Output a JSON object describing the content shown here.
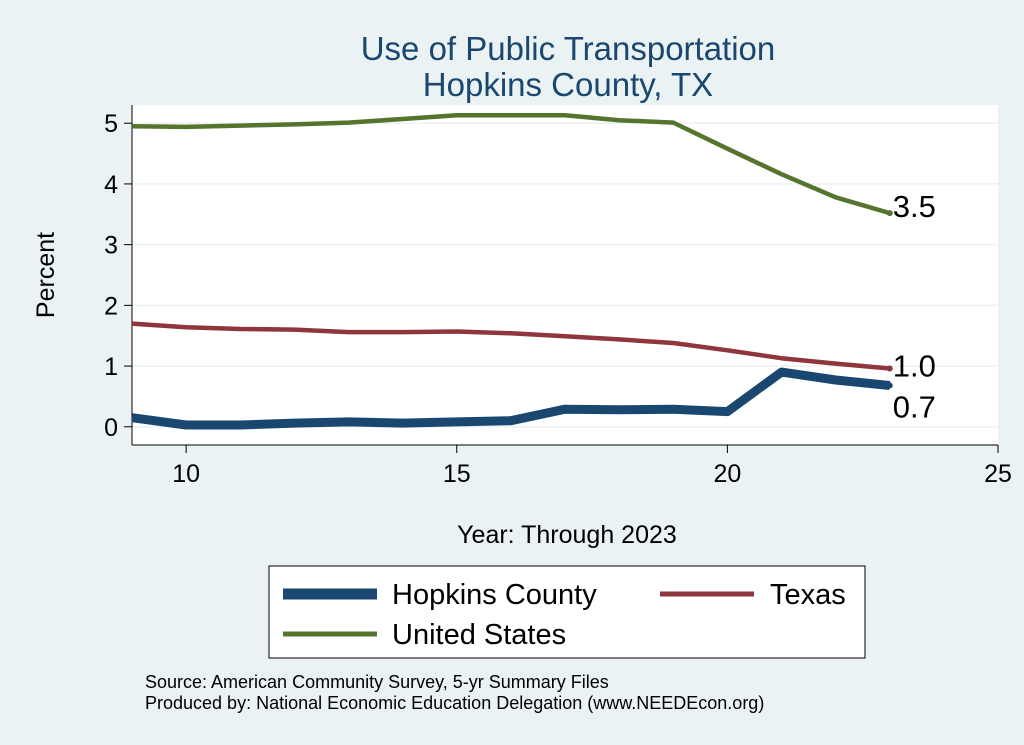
{
  "chart_data": {
    "type": "line",
    "title": [
      "Use of Public Transportation",
      "Hopkins County, TX"
    ],
    "xlabel": "Year: Through 2023",
    "ylabel": "Percent",
    "xlim": [
      9,
      25
    ],
    "ylim": [
      -0.3,
      5.3
    ],
    "xticks": [
      10,
      15,
      20,
      25
    ],
    "yticks": [
      0,
      1,
      2,
      3,
      4,
      5
    ],
    "grid": true,
    "legend_position": "bottom",
    "series": [
      {
        "name": "Hopkins County",
        "color": "#1a476f",
        "x": [
          9,
          10,
          11,
          12,
          13,
          14,
          15,
          16,
          17,
          18,
          19,
          20,
          21,
          22,
          23
        ],
        "y": [
          0.15,
          0.03,
          0.03,
          0.06,
          0.08,
          0.06,
          0.08,
          0.1,
          0.29,
          0.28,
          0.29,
          0.25,
          0.9,
          0.77,
          0.68
        ],
        "end_label": "0.7"
      },
      {
        "name": "Texas",
        "color": "#90353b",
        "x": [
          9,
          10,
          11,
          12,
          13,
          14,
          15,
          16,
          17,
          18,
          19,
          20,
          21,
          22,
          23
        ],
        "y": [
          1.7,
          1.64,
          1.61,
          1.6,
          1.56,
          1.56,
          1.57,
          1.54,
          1.49,
          1.44,
          1.38,
          1.26,
          1.13,
          1.04,
          0.96
        ],
        "end_label": "1.0"
      },
      {
        "name": "United States",
        "color": "#55752f",
        "x": [
          9,
          10,
          11,
          12,
          13,
          14,
          15,
          16,
          17,
          18,
          19,
          20,
          21,
          22,
          23
        ],
        "y": [
          4.95,
          4.94,
          4.96,
          4.98,
          5.01,
          5.07,
          5.13,
          5.13,
          5.13,
          5.05,
          5.01,
          4.58,
          4.16,
          3.78,
          3.52
        ],
        "end_label": "3.5"
      }
    ],
    "legend": [
      "Hopkins County",
      "Texas",
      "United States"
    ],
    "notes": [
      "Source: American Community Survey, 5-yr Summary Files",
      "Produced by: National Economic Education Delegation (www.NEEDEcon.org)"
    ]
  }
}
